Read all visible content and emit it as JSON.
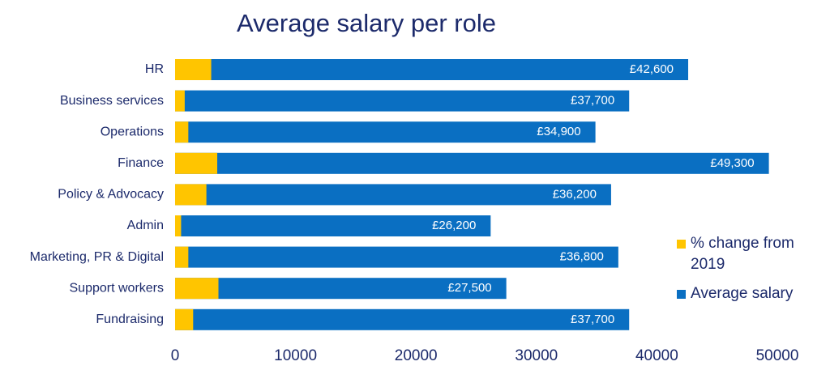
{
  "chart_data": {
    "type": "bar",
    "orientation": "horizontal",
    "overlap": true,
    "title": "Average salary per role",
    "categories": [
      "HR",
      "Business services",
      "Operations",
      "Finance",
      "Policy & Advocacy",
      "Admin",
      "Marketing, PR & Digital",
      "Support workers",
      "Fundraising"
    ],
    "series": [
      {
        "name": "Average salary",
        "color": "#0a6fc2",
        "values": [
          42600,
          37700,
          34900,
          49300,
          36200,
          26200,
          36800,
          27500,
          37700
        ],
        "value_labels": [
          "£42,600",
          "£37,700",
          "£34,900",
          "£49,300",
          "£36,200",
          "£26,200",
          "£36,800",
          "£27,500",
          "£37,700"
        ]
      },
      {
        "name": "% change from 2019",
        "color": "#ffc500",
        "values": [
          3000,
          800,
          1100,
          3500,
          2600,
          500,
          1100,
          3600,
          1500
        ]
      }
    ],
    "xlim": [
      0,
      50000
    ],
    "xticks": [
      0,
      10000,
      20000,
      30000,
      40000,
      50000
    ],
    "grid": false
  }
}
